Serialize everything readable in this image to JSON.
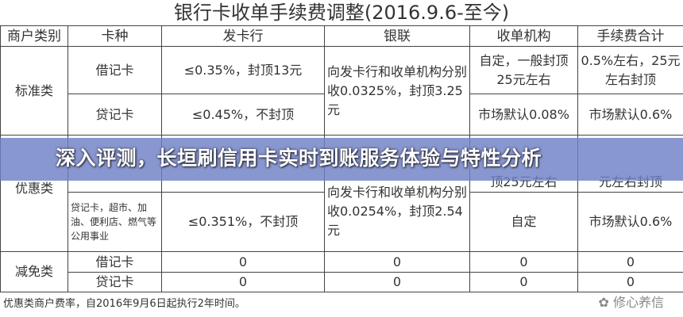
{
  "title": "银行卡收单手续费调整(2016.9.6-至今)",
  "headers": [
    "商户类别",
    "卡种",
    "发卡行",
    "银联",
    "收单机构",
    "手续费合计"
  ],
  "standard": {
    "category": "标准类",
    "debit": {
      "card": "借记卡",
      "issuer": "≤0.35%，封顶13元",
      "acquirer": "自定，一般封顶25元左右",
      "total": "0.5%左右，25元左右封顶"
    },
    "credit": {
      "card": "贷记卡",
      "issuer": "≤0.45%，不封顶",
      "acquirer": "市场默认0.08%",
      "total": "市场默认0.6%"
    },
    "unionpay": "向发卡行和收单机构分别收0.0325%，封顶3.25元"
  },
  "preferential": {
    "category": "优惠类",
    "debit": {
      "acquirer": "顶25元左右",
      "total": "元左右封顶"
    },
    "credit": {
      "card": "贷记卡，超市、加油、便利店、燃气等公用事业",
      "issuer": "≤0.351%，不封顶",
      "acquirer": "自定",
      "total": "市场默认0.6%"
    },
    "unionpay": "向发卡行和收单机构分别收0.0254%，封顶2.54元"
  },
  "exempt": {
    "category": "减免类",
    "debit": {
      "card": "借记卡",
      "issuer": "0",
      "unionpay": "0",
      "acquirer": "0",
      "total": "0"
    },
    "credit": {
      "card": "贷记卡",
      "issuer": "0",
      "unionpay": "0",
      "acquirer": "0",
      "total": "0"
    }
  },
  "footnote": "优惠类商户费率，自2016年9月6日起执行2年时间。",
  "watermark": "修心养信",
  "banner": {
    "text": "深入评测，长垣刷信用卡实时到账服务体验与特性分析",
    "color": "#6e80c4"
  }
}
